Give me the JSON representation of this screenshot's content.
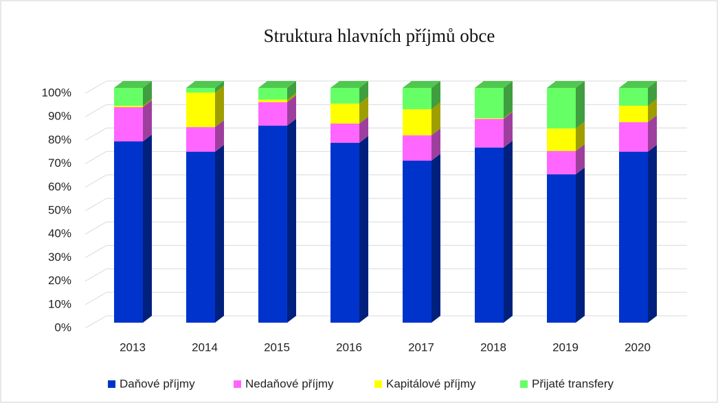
{
  "chart_data": {
    "type": "bar",
    "stacked": true,
    "title": "Struktura hlavních příjmů obce",
    "categories": [
      "2013",
      "2014",
      "2015",
      "2016",
      "2017",
      "2018",
      "2019",
      "2020"
    ],
    "series": [
      {
        "name": "Daňové příjmy",
        "color": "#0033cc",
        "values": [
          77.2,
          72.8,
          83.9,
          76.6,
          69.0,
          74.6,
          63.2,
          72.8
        ]
      },
      {
        "name": "Nedaňové příjmy",
        "color": "#ff66ff",
        "values": [
          14.6,
          10.5,
          10.0,
          8.2,
          10.8,
          12.2,
          9.9,
          12.6
        ]
      },
      {
        "name": "Kapitálové příjmy",
        "color": "#ffff00",
        "values": [
          0.6,
          14.7,
          1.1,
          8.5,
          11.1,
          0.3,
          9.6,
          7.0
        ]
      },
      {
        "name": "Přijaté transfery",
        "color": "#66ff66",
        "values": [
          7.6,
          2.0,
          5.0,
          6.7,
          9.1,
          12.9,
          17.3,
          7.6
        ]
      }
    ],
    "ylim": [
      0,
      100
    ],
    "yticks": [
      {
        "value": 0,
        "label": "0%"
      },
      {
        "value": 10,
        "label": "10%"
      },
      {
        "value": 20,
        "label": "20%"
      },
      {
        "value": 30,
        "label": "30%"
      },
      {
        "value": 40,
        "label": "40%"
      },
      {
        "value": 50,
        "label": "50%"
      },
      {
        "value": 60,
        "label": "60%"
      },
      {
        "value": 70,
        "label": "70%"
      },
      {
        "value": 80,
        "label": "80%"
      },
      {
        "value": 90,
        "label": "90%"
      },
      {
        "value": 100,
        "label": "100%"
      }
    ],
    "grid": true,
    "legend": "bottom"
  }
}
